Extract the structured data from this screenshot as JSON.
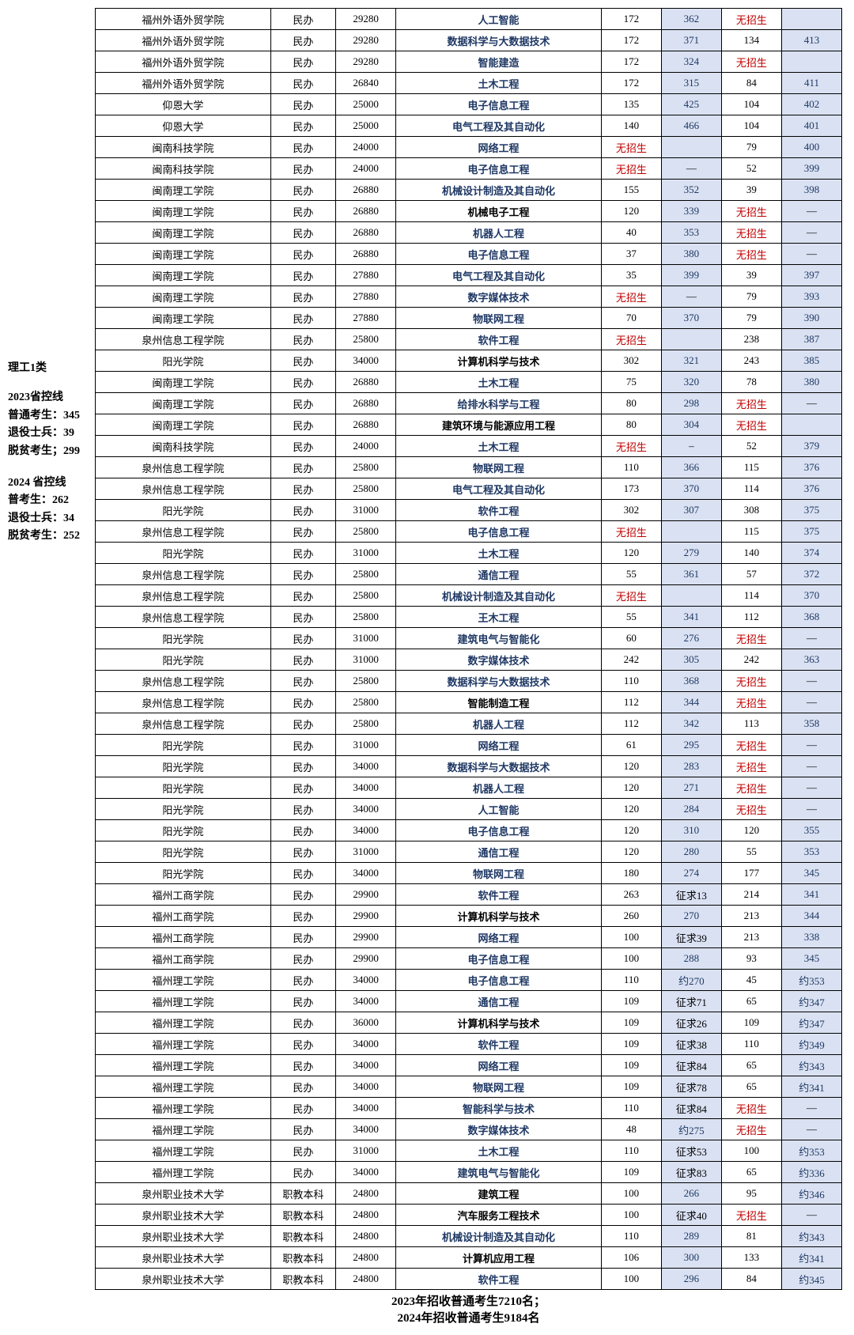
{
  "sidebar": {
    "title": "理工1类",
    "block2023": {
      "l1": "2023省控线",
      "l2": "普通考生：345",
      "l3": "退役士兵：39",
      "l4": "脱贫考生；299"
    },
    "block2024": {
      "l1": "2024 省控线",
      "l2": "普考生：262",
      "l3": "退役士兵：34",
      "l4": "脱贫考生：252"
    }
  },
  "footer": {
    "l1": "2023年招收普通考生7210名；",
    "l2": "2024年招收普通考生9184名"
  },
  "cols": [
    "school",
    "type",
    "tuition",
    "major",
    "c1",
    "c2",
    "c3",
    "c4"
  ],
  "styles": {
    "blue_majors": [
      "人工智能",
      "数据科学与大数据技术",
      "智能建造",
      "土木工程",
      "电子信息工程",
      "网络工程",
      "机械设计制造及其自动化",
      "机器人工程",
      "数字媒体技术",
      "软件工程",
      "给排水科学与工程",
      "物联网工程",
      "电气工程及其自动化",
      "通信工程",
      "王木工程",
      "建筑电气与智能化",
      "智能科学与技术"
    ],
    "c2_bg": true,
    "c4_bg": true,
    "red_text": "无招生"
  },
  "rows": [
    [
      "福州外语外贸学院",
      "民办",
      "29280",
      "人工智能",
      "172",
      "362",
      "无招生",
      ""
    ],
    [
      "福州外语外贸学院",
      "民办",
      "29280",
      "数据科学与大数据技术",
      "172",
      "371",
      "134",
      "413"
    ],
    [
      "福州外语外贸学院",
      "民办",
      "29280",
      "智能建造",
      "172",
      "324",
      "无招生",
      ""
    ],
    [
      "福州外语外贸学院",
      "民办",
      "26840",
      "土木工程",
      "172",
      "315",
      "84",
      "411"
    ],
    [
      "仰恩大学",
      "民办",
      "25000",
      "电子信息工程",
      "135",
      "425",
      "104",
      "402"
    ],
    [
      "仰恩大学",
      "民办",
      "25000",
      "电气工程及其自动化",
      "140",
      "466",
      "104",
      "401"
    ],
    [
      "闽南科技学院",
      "民办",
      "24000",
      "网络工程",
      "无招生",
      "",
      "79",
      "400"
    ],
    [
      "闽南科技学院",
      "民办",
      "24000",
      "电子信息工程",
      "无招生",
      "—",
      "52",
      "399"
    ],
    [
      "闽南理工学院",
      "民办",
      "26880",
      "机械设计制造及其自动化",
      "155",
      "352",
      "39",
      "398"
    ],
    [
      "闽南理工学院",
      "民办",
      "26880",
      "机械电子工程",
      "120",
      "339",
      "无招生",
      "—"
    ],
    [
      "闽南理工学院",
      "民办",
      "26880",
      "机器人工程",
      "40",
      "353",
      "无招生",
      "—"
    ],
    [
      "闽南理工学院",
      "民办",
      "26880",
      "电子信息工程",
      "37",
      "380",
      "无招生",
      "—"
    ],
    [
      "闽南理工学院",
      "民办",
      "27880",
      "电气工程及其自动化",
      "35",
      "399",
      "39",
      "397"
    ],
    [
      "闽南理工学院",
      "民办",
      "27880",
      "数字媒体技术",
      "无招生",
      "—",
      "79",
      "393"
    ],
    [
      "闽南理工学院",
      "民办",
      "27880",
      "物联网工程",
      "70",
      "370",
      "79",
      "390"
    ],
    [
      "泉州信息工程学院",
      "民办",
      "25800",
      "软件工程",
      "无招生",
      "",
      "238",
      "387"
    ],
    [
      "阳光学院",
      "民办",
      "34000",
      "计算机科学与技术",
      "302",
      "321",
      "243",
      "385"
    ],
    [
      "闽南理工学院",
      "民办",
      "26880",
      "土木工程",
      "75",
      "320",
      "78",
      "380"
    ],
    [
      "闽南理工学院",
      "民办",
      "26880",
      "给排水科学与工程",
      "80",
      "298",
      "无招生",
      "—"
    ],
    [
      "闽南理工学院",
      "民办",
      "26880",
      "建筑环境与能源应用工程",
      "80",
      "304",
      "无招生",
      ""
    ],
    [
      "闽南科技学院",
      "民办",
      "24000",
      "土木工程",
      "无招生",
      "–",
      "52",
      "379"
    ],
    [
      "泉州信息工程学院",
      "民办",
      "25800",
      "物联网工程",
      "110",
      "366",
      "115",
      "376"
    ],
    [
      "泉州信息工程学院",
      "民办",
      "25800",
      "电气工程及其自动化",
      "173",
      "370",
      "114",
      "376"
    ],
    [
      "阳光学院",
      "民办",
      "31000",
      "软件工程",
      "302",
      "307",
      "308",
      "375"
    ],
    [
      "泉州信息工程学院",
      "民办",
      "25800",
      "电子信息工程",
      "无招生",
      "",
      "115",
      "375"
    ],
    [
      "阳光学院",
      "民办",
      "31000",
      "土木工程",
      "120",
      "279",
      "140",
      "374"
    ],
    [
      "泉州信息工程学院",
      "民办",
      "25800",
      "通信工程",
      "55",
      "361",
      "57",
      "372"
    ],
    [
      "泉州信息工程学院",
      "民办",
      "25800",
      "机械设计制造及其自动化",
      "无招生",
      "",
      "114",
      "370"
    ],
    [
      "泉州信息工程学院",
      "民办",
      "25800",
      "王木工程",
      "55",
      "341",
      "112",
      "368"
    ],
    [
      "阳光学院",
      "民办",
      "31000",
      "建筑电气与智能化",
      "60",
      "276",
      "无招生",
      "—"
    ],
    [
      "阳光学院",
      "民办",
      "31000",
      "数字媒体技术",
      "242",
      "305",
      "242",
      "363"
    ],
    [
      "泉州信息工程学院",
      "民办",
      "25800",
      "数据科学与大数据技术",
      "110",
      "368",
      "无招生",
      "—"
    ],
    [
      "泉州信息工程学院",
      "民办",
      "25800",
      "智能制造工程",
      "112",
      "344",
      "无招生",
      "—"
    ],
    [
      "泉州信息工程学院",
      "民办",
      "25800",
      "机器人工程",
      "112",
      "342",
      "113",
      "358"
    ],
    [
      "阳光学院",
      "民办",
      "31000",
      "网络工程",
      "61",
      "295",
      "无招生",
      "—"
    ],
    [
      "阳光学院",
      "民办",
      "34000",
      "数据科学与大数据技术",
      "120",
      "283",
      "无招生",
      "—"
    ],
    [
      "阳光学院",
      "民办",
      "34000",
      "机器人工程",
      "120",
      "271",
      "无招生",
      "—"
    ],
    [
      "阳光学院",
      "民办",
      "34000",
      "人工智能",
      "120",
      "284",
      "无招生",
      "—"
    ],
    [
      "阳光学院",
      "民办",
      "34000",
      "电子信息工程",
      "120",
      "310",
      "120",
      "355"
    ],
    [
      "阳光学院",
      "民办",
      "31000",
      "通信工程",
      "120",
      "280",
      "55",
      "353"
    ],
    [
      "阳光学院",
      "民办",
      "34000",
      "物联网工程",
      "180",
      "274",
      "177",
      "345"
    ],
    [
      "福州工商学院",
      "民办",
      "29900",
      "软件工程",
      "263",
      "征求13",
      "214",
      "341"
    ],
    [
      "福州工商学院",
      "民办",
      "29900",
      "计算机科学与技术",
      "260",
      "270",
      "213",
      "344"
    ],
    [
      "福州工商学院",
      "民办",
      "29900",
      "网络工程",
      "100",
      "征求39",
      "213",
      "338"
    ],
    [
      "福州工商学院",
      "民办",
      "29900",
      "电子信息工程",
      "100",
      "288",
      "93",
      "345"
    ],
    [
      "福州理工学院",
      "民办",
      "34000",
      "电子信息工程",
      "110",
      "约270",
      "45",
      "约353"
    ],
    [
      "福州理工学院",
      "民办",
      "34000",
      "通信工程",
      "109",
      "征求71",
      "65",
      "约347"
    ],
    [
      "福州理工学院",
      "民办",
      "36000",
      "计算机科学与技术",
      "109",
      "征求26",
      "109",
      "约347"
    ],
    [
      "福州理工学院",
      "民办",
      "34000",
      "软件工程",
      "109",
      "征求38",
      "110",
      "约349"
    ],
    [
      "福州理工学院",
      "民办",
      "34000",
      "网络工程",
      "109",
      "征求84",
      "65",
      "约343"
    ],
    [
      "福州理工学院",
      "民办",
      "34000",
      "物联网工程",
      "109",
      "征求78",
      "65",
      "约341"
    ],
    [
      "福州理工学院",
      "民办",
      "34000",
      "智能科学与技术",
      "110",
      "征求84",
      "无招生",
      "—"
    ],
    [
      "福州理工学院",
      "民办",
      "34000",
      "数字媒体技术",
      "48",
      "约275",
      "无招生",
      "—"
    ],
    [
      "福州理工学院",
      "民办",
      "31000",
      "土木工程",
      "110",
      "征求53",
      "100",
      "约353"
    ],
    [
      "福州理工学院",
      "民办",
      "34000",
      "建筑电气与智能化",
      "109",
      "征求83",
      "65",
      "约336"
    ],
    [
      "泉州职业技术大学",
      "职教本科",
      "24800",
      "建筑工程",
      "100",
      "266",
      "95",
      "约346"
    ],
    [
      "泉州职业技术大学",
      "职教本科",
      "24800",
      "汽车服务工程技术",
      "100",
      "征求40",
      "无招生",
      "—"
    ],
    [
      "泉州职业技术大学",
      "职教本科",
      "24800",
      "机械设计制造及其自动化",
      "110",
      "289",
      "81",
      "约343"
    ],
    [
      "泉州职业技术大学",
      "职教本科",
      "24800",
      "计算机应用工程",
      "106",
      "300",
      "133",
      "约341"
    ],
    [
      "泉州职业技术大学",
      "职教本科",
      "24800",
      "软件工程",
      "100",
      "296",
      "84",
      "约345"
    ]
  ]
}
